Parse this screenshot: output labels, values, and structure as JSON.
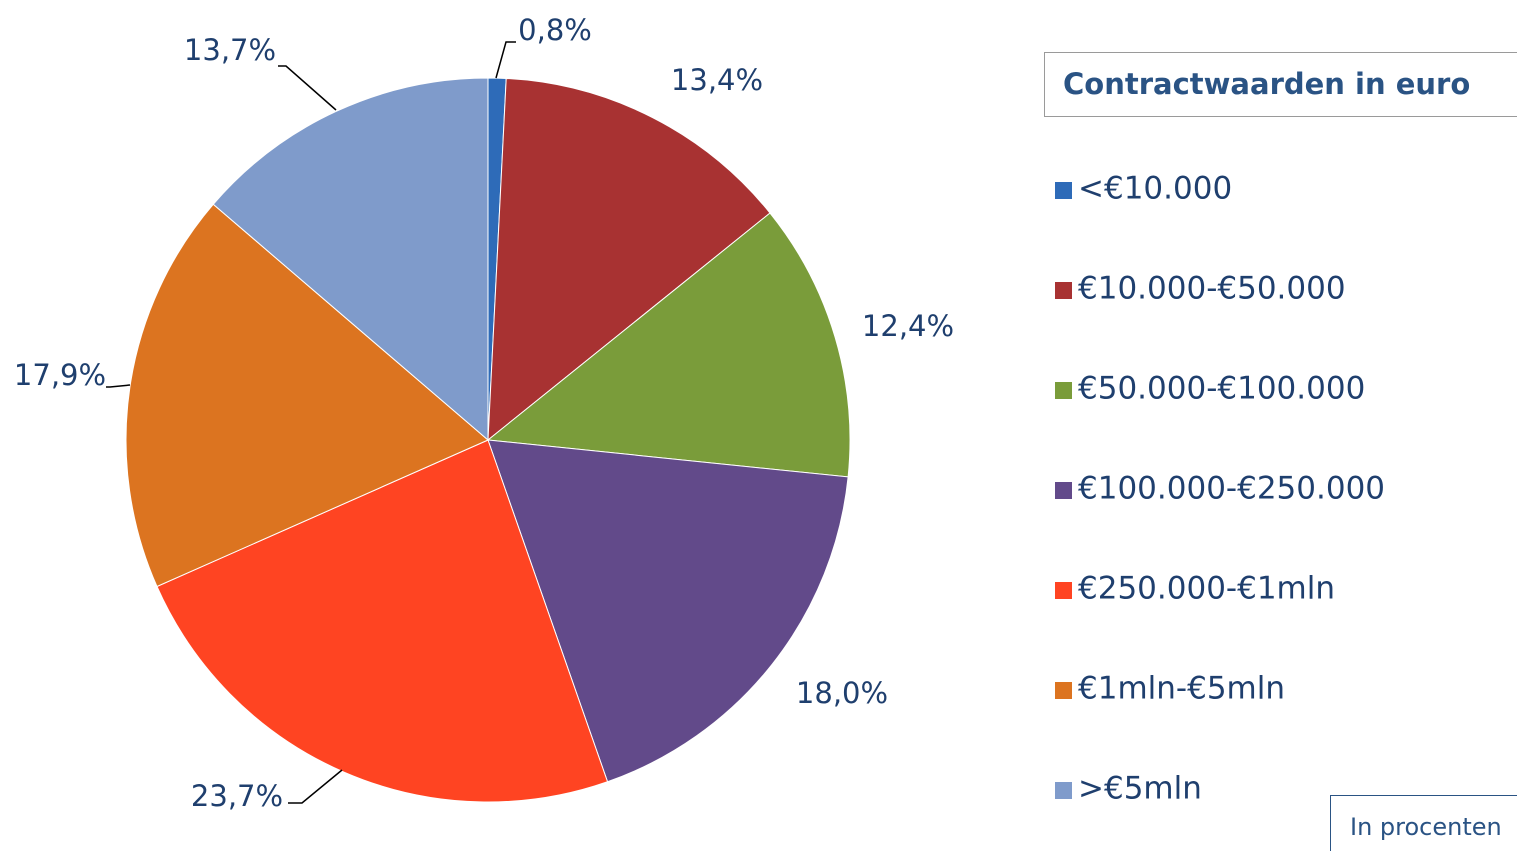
{
  "chart_data": {
    "type": "pie",
    "legend_title": "Contractwaarden in euro",
    "note": "In procenten",
    "categories": [
      "<€10.000",
      "€10.000-€50.000",
      "€50.000-€100.000",
      "€100.000-€250.000",
      "€250.000-€1mln",
      "€1mln-€5mln",
      ">€5mln"
    ],
    "values": [
      0.8,
      13.4,
      12.4,
      18.0,
      23.7,
      17.9,
      13.7
    ],
    "value_labels": [
      "0,8%",
      "13,4%",
      "12,4%",
      "18,0%",
      "23,7%",
      "17,9%",
      "13,7%"
    ],
    "colors": [
      "#2e6bb8",
      "#a83232",
      "#7a9c3a",
      "#624a8a",
      "#ff4422",
      "#dc7420",
      "#7f9bcb"
    ],
    "legend": "right"
  }
}
